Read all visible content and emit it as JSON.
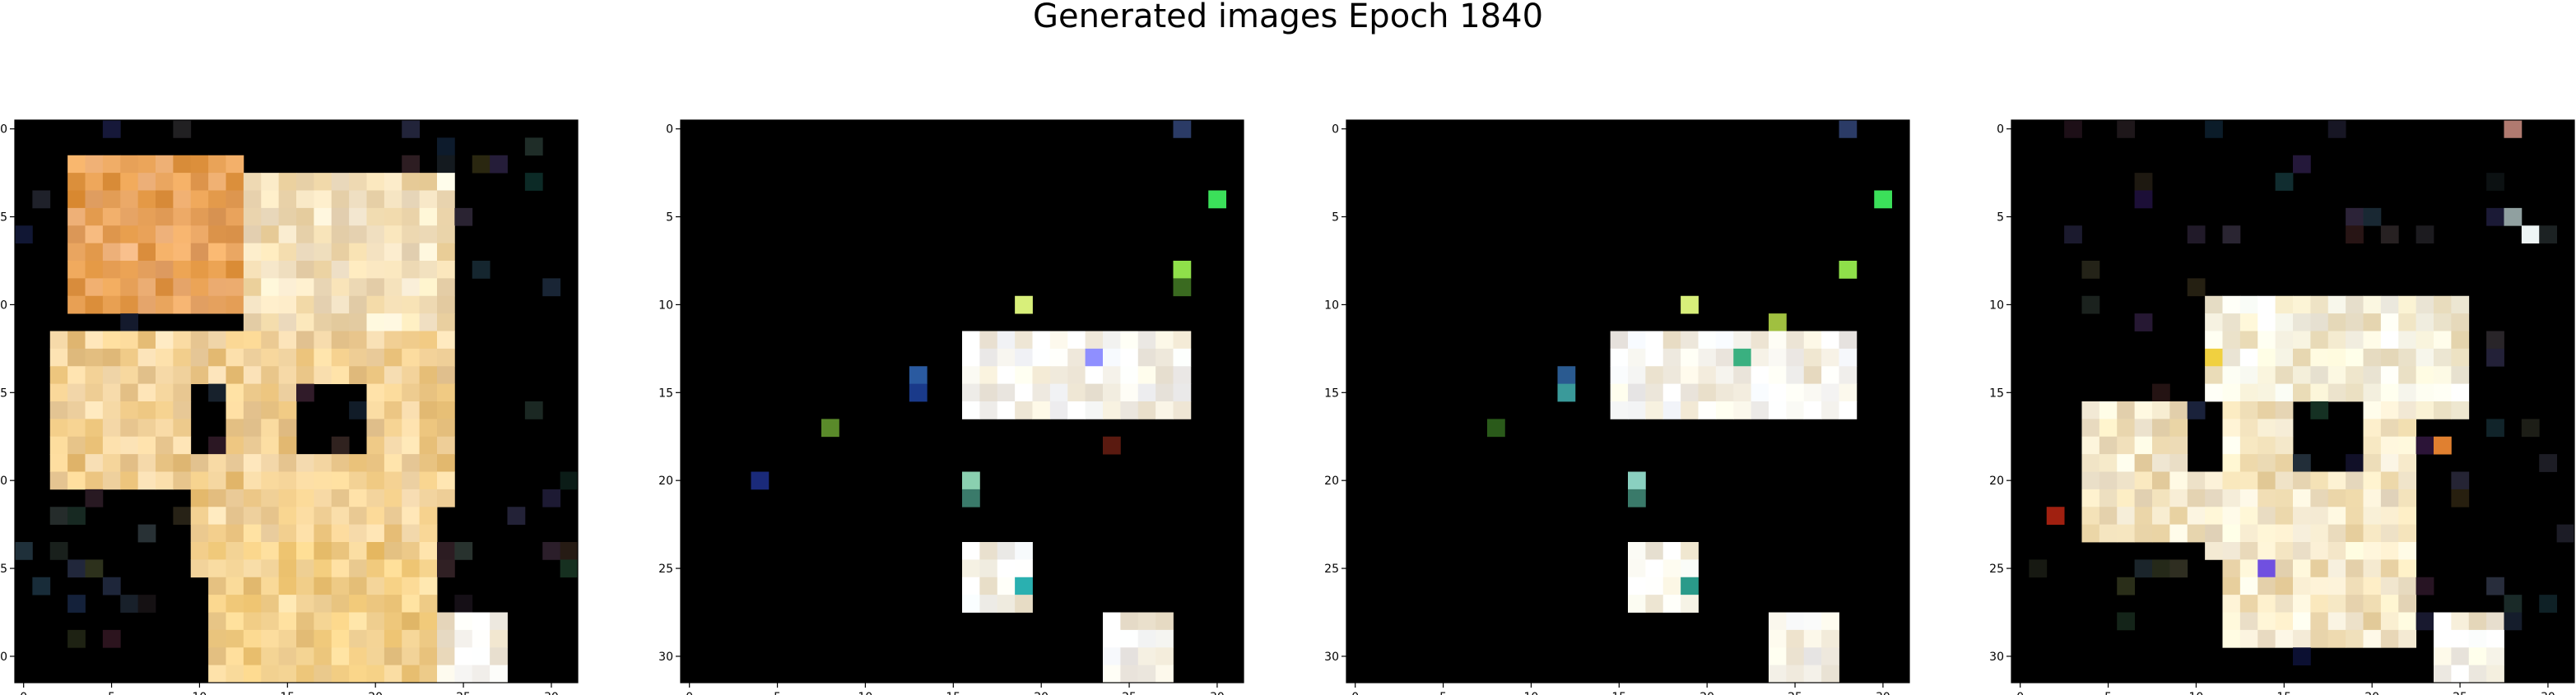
{
  "figure": {
    "title": "Generated images Epoch 1840"
  },
  "chart_data": [
    {
      "type": "heatmap",
      "panel": 1,
      "grid_size": [
        32,
        32
      ],
      "x_ticks": [
        "0",
        "5",
        "10",
        "15",
        "20",
        "25",
        "30"
      ],
      "y_ticks": [
        "0",
        "5",
        "10",
        "15",
        "20",
        "25",
        "30"
      ],
      "background": "#000000",
      "description_colors": [
        "#f5d9a8",
        "#e89a4a",
        "#f3e2c2",
        "#b85d2a"
      ],
      "blobs": [
        {
          "rows": [
            2,
            10
          ],
          "cols": [
            3,
            12
          ],
          "color": "#e9a560"
        },
        {
          "rows": [
            3,
            12
          ],
          "cols": [
            13,
            24
          ],
          "color": "#f3e0bb"
        },
        {
          "rows": [
            12,
            25
          ],
          "cols": [
            2,
            24
          ],
          "color": "#f0cf95"
        },
        {
          "rows": [
            24,
            31
          ],
          "cols": [
            11,
            23
          ],
          "color": "#f2cf8a"
        },
        {
          "rows": [
            27,
            31
          ],
          "cols": [
            24,
            27
          ],
          "color": "#f5efe2"
        }
      ],
      "holes": [
        {
          "rows": [
            15,
            18
          ],
          "cols": [
            10,
            11
          ]
        },
        {
          "rows": [
            15,
            18
          ],
          "cols": [
            16,
            19
          ]
        },
        {
          "rows": [
            21,
            27
          ],
          "cols": [
            0,
            9
          ]
        },
        {
          "rows": [
            22,
            27
          ],
          "cols": [
            24,
            31
          ]
        }
      ]
    },
    {
      "type": "heatmap",
      "panel": 2,
      "grid_size": [
        32,
        32
      ],
      "x_ticks": [
        "0",
        "5",
        "10",
        "15",
        "20",
        "25",
        "30"
      ],
      "y_ticks": [
        "0",
        "5",
        "10",
        "15",
        "20",
        "25",
        "30"
      ],
      "background": "#000000",
      "blobs": [
        {
          "rows": [
            12,
            16
          ],
          "cols": [
            16,
            28
          ],
          "color": "#f7f5ee"
        },
        {
          "rows": [
            24,
            27
          ],
          "cols": [
            16,
            19
          ],
          "color": "#f7f6ee"
        },
        {
          "rows": [
            28,
            31
          ],
          "cols": [
            24,
            27
          ],
          "color": "#f5f2ea"
        }
      ],
      "accents": [
        {
          "r": 0,
          "c": 28,
          "color": "#2b3b66"
        },
        {
          "r": 4,
          "c": 30,
          "color": "#3be05a"
        },
        {
          "r": 8,
          "c": 28,
          "color": "#8fe04a"
        },
        {
          "r": 9,
          "c": 28,
          "color": "#3a6a20"
        },
        {
          "r": 10,
          "c": 19,
          "color": "#d8ef7a"
        },
        {
          "r": 13,
          "c": 23,
          "color": "#8f8fff"
        },
        {
          "r": 14,
          "c": 13,
          "color": "#2a5aa0"
        },
        {
          "r": 15,
          "c": 13,
          "color": "#1a3a8a"
        },
        {
          "r": 17,
          "c": 8,
          "color": "#5a8a2a"
        },
        {
          "r": 20,
          "c": 4,
          "color": "#1a2a7a"
        },
        {
          "r": 20,
          "c": 16,
          "color": "#8ad0b0"
        },
        {
          "r": 21,
          "c": 16,
          "color": "#3a7a6a"
        },
        {
          "r": 18,
          "c": 24,
          "color": "#5a1a10"
        },
        {
          "r": 26,
          "c": 19,
          "color": "#2ab0b0"
        }
      ]
    },
    {
      "type": "heatmap",
      "panel": 3,
      "grid_size": [
        32,
        32
      ],
      "x_ticks": [
        "0",
        "5",
        "10",
        "15",
        "20",
        "25",
        "30"
      ],
      "y_ticks": [
        "0",
        "5",
        "10",
        "15",
        "20",
        "25",
        "30"
      ],
      "background": "#000000",
      "blobs": [
        {
          "rows": [
            12,
            16
          ],
          "cols": [
            15,
            28
          ],
          "color": "#f7f5ee"
        },
        {
          "rows": [
            24,
            27
          ],
          "cols": [
            16,
            19
          ],
          "color": "#f7f6ee"
        },
        {
          "rows": [
            28,
            31
          ],
          "cols": [
            24,
            27
          ],
          "color": "#f5f2ea"
        }
      ],
      "accents": [
        {
          "r": 0,
          "c": 28,
          "color": "#2b3b66"
        },
        {
          "r": 4,
          "c": 30,
          "color": "#3be05a"
        },
        {
          "r": 8,
          "c": 28,
          "color": "#8fe04a"
        },
        {
          "r": 10,
          "c": 19,
          "color": "#d8ef7a"
        },
        {
          "r": 11,
          "c": 24,
          "color": "#a0c040"
        },
        {
          "r": 13,
          "c": 22,
          "color": "#3ab080"
        },
        {
          "r": 14,
          "c": 12,
          "color": "#2a5a90"
        },
        {
          "r": 15,
          "c": 12,
          "color": "#3a9a9a"
        },
        {
          "r": 17,
          "c": 8,
          "color": "#2a5a1a"
        },
        {
          "r": 20,
          "c": 16,
          "color": "#8ad0c0"
        },
        {
          "r": 21,
          "c": 16,
          "color": "#3a7a6a"
        },
        {
          "r": 26,
          "c": 19,
          "color": "#2a9a8a"
        }
      ]
    },
    {
      "type": "heatmap",
      "panel": 4,
      "grid_size": [
        32,
        32
      ],
      "x_ticks": [
        "0",
        "5",
        "10",
        "15",
        "20",
        "25",
        "30"
      ],
      "y_ticks": [
        "0",
        "5",
        "10",
        "15",
        "20",
        "25",
        "30"
      ],
      "background": "#000000",
      "blobs": [
        {
          "rows": [
            10,
            16
          ],
          "cols": [
            11,
            25
          ],
          "color": "#f5f0dc"
        },
        {
          "rows": [
            16,
            24
          ],
          "cols": [
            4,
            22
          ],
          "color": "#f2e4c4"
        },
        {
          "rows": [
            23,
            29
          ],
          "cols": [
            12,
            22
          ],
          "color": "#f4e6c6"
        },
        {
          "rows": [
            28,
            31
          ],
          "cols": [
            24,
            27
          ],
          "color": "#f5f0e2"
        }
      ],
      "holes": [
        {
          "rows": [
            16,
            19
          ],
          "cols": [
            10,
            11
          ]
        },
        {
          "rows": [
            16,
            19
          ],
          "cols": [
            16,
            19
          ]
        },
        {
          "rows": [
            24,
            27
          ],
          "cols": [
            4,
            10
          ]
        }
      ],
      "accents": [
        {
          "r": 0,
          "c": 28,
          "color": "#b07a70"
        },
        {
          "r": 6,
          "c": 29,
          "color": "#eef5f5"
        },
        {
          "r": 5,
          "c": 28,
          "color": "#90a0a0"
        },
        {
          "r": 13,
          "c": 11,
          "color": "#f0d040"
        },
        {
          "r": 18,
          "c": 24,
          "color": "#e08030"
        },
        {
          "r": 22,
          "c": 2,
          "color": "#a02010"
        },
        {
          "r": 25,
          "c": 14,
          "color": "#7050e0"
        }
      ]
    }
  ]
}
